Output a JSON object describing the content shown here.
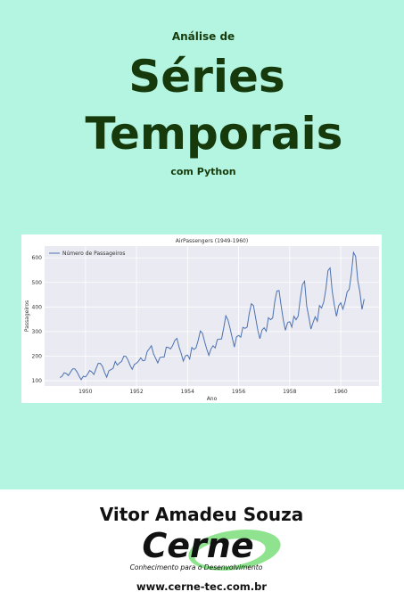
{
  "cover": {
    "kicker": "Análise de",
    "title_line1": "Séries",
    "title_line2": "Temporais",
    "subtitle": "com Python",
    "author": "Vitor Amadeu Souza",
    "logo": "Cerne",
    "tagline": "Conhecimento para o Desenvolvimento",
    "website": "www.cerne-tec.com.br"
  },
  "chart_data": {
    "type": "line",
    "title": "AirPassengers (1949-1960)",
    "x_label": "Ano",
    "y_label": "Passageiros",
    "grid": true,
    "legend": "upper left",
    "x": [
      1949,
      1949.083,
      1949.167,
      1949.25,
      1949.333,
      1949.417,
      1949.5,
      1949.583,
      1949.667,
      1949.75,
      1949.833,
      1949.917,
      1950,
      1950.083,
      1950.167,
      1950.25,
      1950.333,
      1950.417,
      1950.5,
      1950.583,
      1950.667,
      1950.75,
      1950.833,
      1950.917,
      1951,
      1951.083,
      1951.167,
      1951.25,
      1951.333,
      1951.417,
      1951.5,
      1951.583,
      1951.667,
      1951.75,
      1951.833,
      1951.917,
      1952,
      1952.083,
      1952.167,
      1952.25,
      1952.333,
      1952.417,
      1952.5,
      1952.583,
      1952.667,
      1952.75,
      1952.833,
      1952.917,
      1953,
      1953.083,
      1953.167,
      1953.25,
      1953.333,
      1953.417,
      1953.5,
      1953.583,
      1953.667,
      1953.75,
      1953.833,
      1953.917,
      1954,
      1954.083,
      1954.167,
      1954.25,
      1954.333,
      1954.417,
      1954.5,
      1954.583,
      1954.667,
      1954.75,
      1954.833,
      1954.917,
      1955,
      1955.083,
      1955.167,
      1955.25,
      1955.333,
      1955.417,
      1955.5,
      1955.583,
      1955.667,
      1955.75,
      1955.833,
      1955.917,
      1956,
      1956.083,
      1956.167,
      1956.25,
      1956.333,
      1956.417,
      1956.5,
      1956.583,
      1956.667,
      1956.75,
      1956.833,
      1956.917,
      1957,
      1957.083,
      1957.167,
      1957.25,
      1957.333,
      1957.417,
      1957.5,
      1957.583,
      1957.667,
      1957.75,
      1957.833,
      1957.917,
      1958,
      1958.083,
      1958.167,
      1958.25,
      1958.333,
      1958.417,
      1958.5,
      1958.583,
      1958.667,
      1958.75,
      1958.833,
      1958.917,
      1959,
      1959.083,
      1959.167,
      1959.25,
      1959.333,
      1959.417,
      1959.5,
      1959.583,
      1959.667,
      1959.75,
      1959.833,
      1959.917,
      1960,
      1960.083,
      1960.167,
      1960.25,
      1960.333,
      1960.417,
      1960.5,
      1960.583,
      1960.667,
      1960.75,
      1960.833,
      1960.917
    ],
    "series": [
      {
        "name": "Número de Passageiros",
        "color": "#4c72b0",
        "values": [
          112,
          118,
          132,
          129,
          121,
          135,
          148,
          148,
          136,
          119,
          104,
          118,
          115,
          126,
          141,
          135,
          125,
          149,
          170,
          170,
          158,
          133,
          114,
          140,
          145,
          150,
          178,
          163,
          172,
          178,
          199,
          199,
          184,
          162,
          146,
          166,
          171,
          180,
          193,
          181,
          183,
          218,
          230,
          242,
          209,
          191,
          172,
          194,
          196,
          196,
          236,
          235,
          229,
          243,
          264,
          272,
          237,
          211,
          180,
          201,
          204,
          188,
          235,
          227,
          234,
          264,
          302,
          293,
          259,
          229,
          203,
          229,
          242,
          233,
          267,
          269,
          270,
          315,
          364,
          347,
          312,
          274,
          237,
          278,
          284,
          277,
          317,
          313,
          318,
          374,
          413,
          405,
          355,
          306,
          271,
          306,
          315,
          301,
          356,
          348,
          355,
          422,
          465,
          467,
          404,
          347,
          305,
          336,
          340,
          318,
          362,
          348,
          363,
          435,
          491,
          505,
          404,
          359,
          310,
          337,
          360,
          342,
          406,
          396,
          420,
          472,
          548,
          559,
          463,
          407,
          362,
          405,
          417,
          391,
          419,
          461,
          472,
          535,
          622,
          606,
          508,
          461,
          390,
          432
        ]
      }
    ],
    "xlim": [
      1948.4,
      1961.5
    ],
    "xticks": [
      1950,
      1952,
      1954,
      1956,
      1958,
      1960
    ],
    "ylim": [
      78,
      648
    ],
    "yticks": [
      100,
      200,
      300,
      400,
      500,
      600
    ]
  }
}
